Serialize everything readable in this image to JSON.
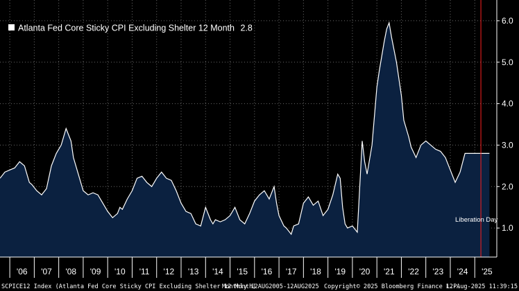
{
  "chart_data": {
    "type": "area",
    "title": "",
    "xlabel": "",
    "ylabel": "",
    "legend": {
      "position": "top-left",
      "label": "Atlanta Fed Core Sticky CPI Excluding Shelter 12 Month",
      "last_value": "2.8"
    },
    "series": [
      {
        "name": "Atlanta Fed Core Sticky CPI Excluding Shelter 12 Month",
        "color": "#ffffff",
        "fill": "#0b2140",
        "x": [
          2005.6,
          2005.8,
          2006.0,
          2006.2,
          2006.4,
          2006.6,
          2006.8,
          2006.9,
          2007.1,
          2007.3,
          2007.5,
          2007.7,
          2007.9,
          2008.1,
          2008.3,
          2008.5,
          2008.6,
          2008.8,
          2009.0,
          2009.2,
          2009.4,
          2009.6,
          2009.8,
          2010.0,
          2010.2,
          2010.4,
          2010.5,
          2010.6,
          2010.8,
          2011.0,
          2011.2,
          2011.4,
          2011.6,
          2011.8,
          2012.0,
          2012.2,
          2012.4,
          2012.6,
          2012.8,
          2013.0,
          2013.2,
          2013.4,
          2013.6,
          2013.8,
          2014.0,
          2014.2,
          2014.3,
          2014.4,
          2014.6,
          2014.8,
          2015.0,
          2015.2,
          2015.4,
          2015.6,
          2015.8,
          2016.0,
          2016.2,
          2016.4,
          2016.6,
          2016.8,
          2016.9,
          2017.0,
          2017.2,
          2017.3,
          2017.5,
          2017.6,
          2017.8,
          2018.0,
          2018.2,
          2018.4,
          2018.6,
          2018.8,
          2019.0,
          2019.2,
          2019.4,
          2019.5,
          2019.6,
          2019.7,
          2019.8,
          2020.0,
          2020.2,
          2020.4,
          2020.5,
          2020.6,
          2020.8,
          2021.0,
          2021.1,
          2021.3,
          2021.4,
          2021.5,
          2021.6,
          2021.8,
          2022.0,
          2022.1,
          2022.3,
          2022.4,
          2022.6,
          2022.8,
          2023.0,
          2023.2,
          2023.4,
          2023.6,
          2023.8,
          2024.0,
          2024.2,
          2024.4,
          2024.6,
          2024.8,
          2025.0,
          2025.2,
          2025.4,
          2025.6
        ],
        "values": [
          2.2,
          2.35,
          2.4,
          2.45,
          2.6,
          2.5,
          2.1,
          2.05,
          1.9,
          1.8,
          1.95,
          2.5,
          2.8,
          3.0,
          3.4,
          3.1,
          2.7,
          2.3,
          1.9,
          1.8,
          1.85,
          1.8,
          1.6,
          1.4,
          1.25,
          1.35,
          1.5,
          1.45,
          1.7,
          1.9,
          2.2,
          2.25,
          2.1,
          2.0,
          2.2,
          2.35,
          2.2,
          2.15,
          1.9,
          1.6,
          1.4,
          1.35,
          1.1,
          1.05,
          1.5,
          1.2,
          1.1,
          1.2,
          1.15,
          1.2,
          1.3,
          1.5,
          1.2,
          1.1,
          1.35,
          1.65,
          1.8,
          1.9,
          1.7,
          2.0,
          1.6,
          1.3,
          1.05,
          1.0,
          0.85,
          1.05,
          1.1,
          1.6,
          1.75,
          1.55,
          1.65,
          1.3,
          1.45,
          1.8,
          2.3,
          2.2,
          1.5,
          1.1,
          1.0,
          1.05,
          0.9,
          3.1,
          2.6,
          2.3,
          3.0,
          4.4,
          4.8,
          5.5,
          5.8,
          5.95,
          5.6,
          5.0,
          4.2,
          3.6,
          3.2,
          2.95,
          2.7,
          3.0,
          3.1,
          3.0,
          2.9,
          2.85,
          2.7,
          2.4,
          2.1,
          2.35,
          2.8,
          2.8,
          2.8,
          2.8,
          2.8,
          2.8
        ]
      }
    ],
    "xlim": [
      2005.6,
      2025.9
    ],
    "ylim": [
      0.3,
      6.5
    ],
    "x_tick_labels": [
      "'06",
      "'07",
      "'08",
      "'09",
      "'10",
      "'11",
      "'12",
      "'13",
      "'14",
      "'15",
      "'16",
      "'17",
      "'18",
      "'19",
      "'20",
      "'21",
      "'22",
      "'23",
      "'24",
      "'25"
    ],
    "x_tick_years": [
      2006,
      2007,
      2008,
      2009,
      2010,
      2011,
      2012,
      2013,
      2014,
      2015,
      2016,
      2017,
      2018,
      2019,
      2020,
      2021,
      2022,
      2023,
      2024,
      2025
    ],
    "y_ticks": [
      1,
      2,
      3,
      4,
      5,
      6
    ],
    "y_tick_labels": [
      "1.0",
      "2.0",
      "3.0",
      "4.0",
      "5.0",
      "6.0"
    ],
    "y_axis_side": "right",
    "grid": true,
    "vline": {
      "x": 2025.25,
      "color": "#ff2020"
    },
    "annotations": [
      {
        "text": "Liberation Day",
        "x": 2024.2,
        "y": 1.2
      }
    ]
  },
  "footer": {
    "ticker": "SCPICE12 Index (Atlanta Fed Core Sticky CPI Excluding Shelter 12 Month)",
    "frequency": "Monthly 12AUG2005-12AUG2025",
    "copyright": "Copyright© 2025 Bloomberg Finance L.P.",
    "timestamp": "12-Aug-2025 11:39:15"
  }
}
